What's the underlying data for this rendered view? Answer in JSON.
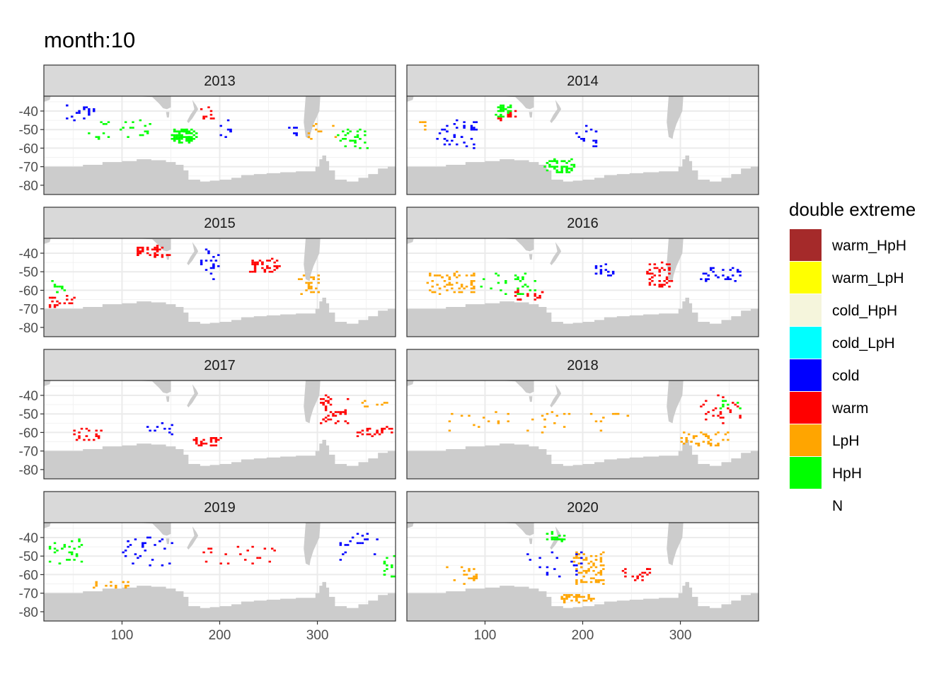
{
  "title": "month:10",
  "chart_data": {
    "type": "heatmap",
    "title": "month:10",
    "xlabel": "",
    "ylabel": "",
    "xlim": [
      20,
      380
    ],
    "ylim": [
      -85,
      -32
    ],
    "x_ticks": [
      "100",
      "200",
      "300"
    ],
    "x_tick_values": [
      100,
      200,
      300
    ],
    "y_ticks": [
      "-40",
      "-50",
      "-60",
      "-70",
      "-80"
    ],
    "y_tick_values": [
      -40,
      -50,
      -60,
      -70,
      -80
    ],
    "grid": true,
    "facet_by": "year",
    "facets": [
      "2013",
      "2014",
      "2015",
      "2016",
      "2017",
      "2018",
      "2019",
      "2020"
    ],
    "legend": {
      "title": "double extreme",
      "position": "right",
      "categories": [
        {
          "label": "warm_HpH",
          "color": "#a52a2a"
        },
        {
          "label": "warm_LpH",
          "color": "#ffff00"
        },
        {
          "label": "cold_HpH",
          "color": "#f5f5dc"
        },
        {
          "label": "cold_LpH",
          "color": "#00ffff"
        },
        {
          "label": "cold",
          "color": "#0000ff"
        },
        {
          "label": "warm",
          "color": "#ff0000"
        },
        {
          "label": "LpH",
          "color": "#ffa500"
        },
        {
          "label": "HpH",
          "color": "#00ff00"
        },
        {
          "label": "N",
          "color": "#ffffff"
        }
      ]
    },
    "land_color": "#cccccc",
    "clusters": [
      {
        "facet": "2013",
        "cat": "HpH",
        "x": [
          150,
          175
        ],
        "y": [
          -57,
          -50
        ],
        "n": 90
      },
      {
        "facet": "2013",
        "cat": "HpH",
        "x": [
          320,
          350
        ],
        "y": [
          -60,
          -50
        ],
        "n": 30
      },
      {
        "facet": "2013",
        "cat": "HpH",
        "x": [
          60,
          140
        ],
        "y": [
          -55,
          -45
        ],
        "n": 25
      },
      {
        "facet": "2013",
        "cat": "cold",
        "x": [
          40,
          70
        ],
        "y": [
          -45,
          -37
        ],
        "n": 20
      },
      {
        "facet": "2013",
        "cat": "cold",
        "x": [
          200,
          210
        ],
        "y": [
          -55,
          -45
        ],
        "n": 8
      },
      {
        "facet": "2013",
        "cat": "cold",
        "x": [
          270,
          280
        ],
        "y": [
          -53,
          -48
        ],
        "n": 6
      },
      {
        "facet": "2013",
        "cat": "warm",
        "x": [
          180,
          195
        ],
        "y": [
          -45,
          -37
        ],
        "n": 10
      },
      {
        "facet": "2013",
        "cat": "LpH",
        "x": [
          290,
          320
        ],
        "y": [
          -55,
          -45
        ],
        "n": 10
      },
      {
        "facet": "2014",
        "cat": "HpH",
        "x": [
          110,
          125
        ],
        "y": [
          -43,
          -37
        ],
        "n": 30
      },
      {
        "facet": "2014",
        "cat": "HpH",
        "x": [
          160,
          190
        ],
        "y": [
          -73,
          -66
        ],
        "n": 50
      },
      {
        "facet": "2014",
        "cat": "cold",
        "x": [
          50,
          90
        ],
        "y": [
          -60,
          -45
        ],
        "n": 40
      },
      {
        "facet": "2014",
        "cat": "cold",
        "x": [
          190,
          215
        ],
        "y": [
          -60,
          -48
        ],
        "n": 15
      },
      {
        "facet": "2014",
        "cat": "warm",
        "x": [
          110,
          130
        ],
        "y": [
          -45,
          -38
        ],
        "n": 10
      },
      {
        "facet": "2014",
        "cat": "LpH",
        "x": [
          25,
          40
        ],
        "y": [
          -50,
          -45
        ],
        "n": 6
      },
      {
        "facet": "2015",
        "cat": "warm",
        "x": [
          115,
          150
        ],
        "y": [
          -42,
          -36
        ],
        "n": 40
      },
      {
        "facet": "2015",
        "cat": "warm",
        "x": [
          230,
          260
        ],
        "y": [
          -50,
          -43
        ],
        "n": 40
      },
      {
        "facet": "2015",
        "cat": "warm",
        "x": [
          25,
          50
        ],
        "y": [
          -69,
          -63
        ],
        "n": 20
      },
      {
        "facet": "2015",
        "cat": "LpH",
        "x": [
          280,
          300
        ],
        "y": [
          -62,
          -52
        ],
        "n": 25
      },
      {
        "facet": "2015",
        "cat": "cold",
        "x": [
          180,
          200
        ],
        "y": [
          -55,
          -38
        ],
        "n": 20
      },
      {
        "facet": "2015",
        "cat": "HpH",
        "x": [
          25,
          40
        ],
        "y": [
          -62,
          -55
        ],
        "n": 10
      },
      {
        "facet": "2016",
        "cat": "LpH",
        "x": [
          40,
          90
        ],
        "y": [
          -62,
          -50
        ],
        "n": 60
      },
      {
        "facet": "2016",
        "cat": "warm",
        "x": [
          265,
          290
        ],
        "y": [
          -58,
          -45
        ],
        "n": 50
      },
      {
        "facet": "2016",
        "cat": "warm",
        "x": [
          130,
          160
        ],
        "y": [
          -65,
          -60
        ],
        "n": 20
      },
      {
        "facet": "2016",
        "cat": "cold",
        "x": [
          320,
          360
        ],
        "y": [
          -55,
          -48
        ],
        "n": 30
      },
      {
        "facet": "2016",
        "cat": "cold",
        "x": [
          210,
          230
        ],
        "y": [
          -52,
          -46
        ],
        "n": 15
      },
      {
        "facet": "2016",
        "cat": "HpH",
        "x": [
          90,
          150
        ],
        "y": [
          -62,
          -50
        ],
        "n": 30
      },
      {
        "facet": "2017",
        "cat": "warm",
        "x": [
          340,
          375
        ],
        "y": [
          -62,
          -57
        ],
        "n": 30
      },
      {
        "facet": "2017",
        "cat": "warm",
        "x": [
          300,
          330
        ],
        "y": [
          -55,
          -40
        ],
        "n": 50
      },
      {
        "facet": "2017",
        "cat": "warm",
        "x": [
          170,
          200
        ],
        "y": [
          -67,
          -63
        ],
        "n": 30
      },
      {
        "facet": "2017",
        "cat": "warm",
        "x": [
          50,
          80
        ],
        "y": [
          -64,
          -58
        ],
        "n": 20
      },
      {
        "facet": "2017",
        "cat": "cold",
        "x": [
          120,
          150
        ],
        "y": [
          -62,
          -55
        ],
        "n": 10
      },
      {
        "facet": "2017",
        "cat": "LpH",
        "x": [
          340,
          370
        ],
        "y": [
          -46,
          -43
        ],
        "n": 8
      },
      {
        "facet": "2018",
        "cat": "LpH",
        "x": [
          300,
          350
        ],
        "y": [
          -67,
          -60
        ],
        "n": 40
      },
      {
        "facet": "2018",
        "cat": "LpH",
        "x": [
          60,
          250
        ],
        "y": [
          -60,
          -48
        ],
        "n": 40
      },
      {
        "facet": "2018",
        "cat": "warm",
        "x": [
          320,
          360
        ],
        "y": [
          -55,
          -40
        ],
        "n": 25
      },
      {
        "facet": "2018",
        "cat": "HpH",
        "x": [
          340,
          360
        ],
        "y": [
          -48,
          -42
        ],
        "n": 10
      },
      {
        "facet": "2019",
        "cat": "HpH",
        "x": [
          25,
          60
        ],
        "y": [
          -55,
          -40
        ],
        "n": 30
      },
      {
        "facet": "2019",
        "cat": "HpH",
        "x": [
          365,
          378
        ],
        "y": [
          -62,
          -48
        ],
        "n": 15
      },
      {
        "facet": "2019",
        "cat": "cold",
        "x": [
          100,
          150
        ],
        "y": [
          -55,
          -40
        ],
        "n": 30
      },
      {
        "facet": "2019",
        "cat": "cold",
        "x": [
          320,
          360
        ],
        "y": [
          -52,
          -38
        ],
        "n": 20
      },
      {
        "facet": "2019",
        "cat": "LpH",
        "x": [
          70,
          110
        ],
        "y": [
          -67,
          -64
        ],
        "n": 15
      },
      {
        "facet": "2019",
        "cat": "warm",
        "x": [
          180,
          260
        ],
        "y": [
          -55,
          -45
        ],
        "n": 20
      },
      {
        "facet": "2020",
        "cat": "LpH",
        "x": [
          190,
          220
        ],
        "y": [
          -65,
          -48
        ],
        "n": 70
      },
      {
        "facet": "2020",
        "cat": "LpH",
        "x": [
          175,
          210
        ],
        "y": [
          -75,
          -71
        ],
        "n": 40
      },
      {
        "facet": "2020",
        "cat": "LpH",
        "x": [
          60,
          90
        ],
        "y": [
          -65,
          -55
        ],
        "n": 20
      },
      {
        "facet": "2020",
        "cat": "HpH",
        "x": [
          160,
          180
        ],
        "y": [
          -42,
          -36
        ],
        "n": 20
      },
      {
        "facet": "2020",
        "cat": "warm",
        "x": [
          240,
          270
        ],
        "y": [
          -64,
          -56
        ],
        "n": 20
      },
      {
        "facet": "2020",
        "cat": "cold",
        "x": [
          140,
          200
        ],
        "y": [
          -62,
          -48
        ],
        "n": 20
      }
    ]
  }
}
